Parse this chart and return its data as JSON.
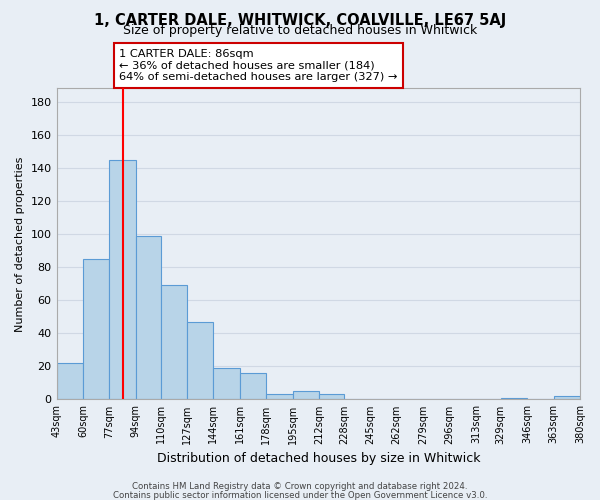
{
  "title": "1, CARTER DALE, WHITWICK, COALVILLE, LE67 5AJ",
  "subtitle": "Size of property relative to detached houses in Whitwick",
  "xlabel": "Distribution of detached houses by size in Whitwick",
  "ylabel": "Number of detached properties",
  "bar_values": [
    22,
    85,
    145,
    99,
    69,
    47,
    19,
    16,
    3,
    5,
    3,
    0,
    0,
    0,
    0,
    0,
    0,
    1,
    0,
    2
  ],
  "bin_labels": [
    "43sqm",
    "60sqm",
    "77sqm",
    "94sqm",
    "110sqm",
    "127sqm",
    "144sqm",
    "161sqm",
    "178sqm",
    "195sqm",
    "212sqm",
    "228sqm",
    "245sqm",
    "262sqm",
    "279sqm",
    "296sqm",
    "313sqm",
    "329sqm",
    "346sqm",
    "363sqm",
    "380sqm"
  ],
  "bin_edges": [
    43,
    60,
    77,
    94,
    110,
    127,
    144,
    161,
    178,
    195,
    212,
    228,
    245,
    262,
    279,
    296,
    313,
    329,
    346,
    363,
    380
  ],
  "bar_color": "#b8d4e8",
  "bar_edge_color": "#5b9bd5",
  "red_line_x": 86,
  "ylim": [
    0,
    188
  ],
  "yticks": [
    0,
    20,
    40,
    60,
    80,
    100,
    120,
    140,
    160,
    180
  ],
  "annotation_title": "1 CARTER DALE: 86sqm",
  "annotation_line1": "← 36% of detached houses are smaller (184)",
  "annotation_line2": "64% of semi-detached houses are larger (327) →",
  "footer1": "Contains HM Land Registry data © Crown copyright and database right 2024.",
  "footer2": "Contains public sector information licensed under the Open Government Licence v3.0.",
  "background_color": "#e8eef5",
  "plot_bg_color": "#e8eef5",
  "grid_color": "#d0d8e4",
  "annotation_box_color": "#ffffff",
  "annotation_border_color": "#cc0000",
  "title_fontsize": 10.5,
  "subtitle_fontsize": 9,
  "ylabel_fontsize": 8,
  "xlabel_fontsize": 9
}
